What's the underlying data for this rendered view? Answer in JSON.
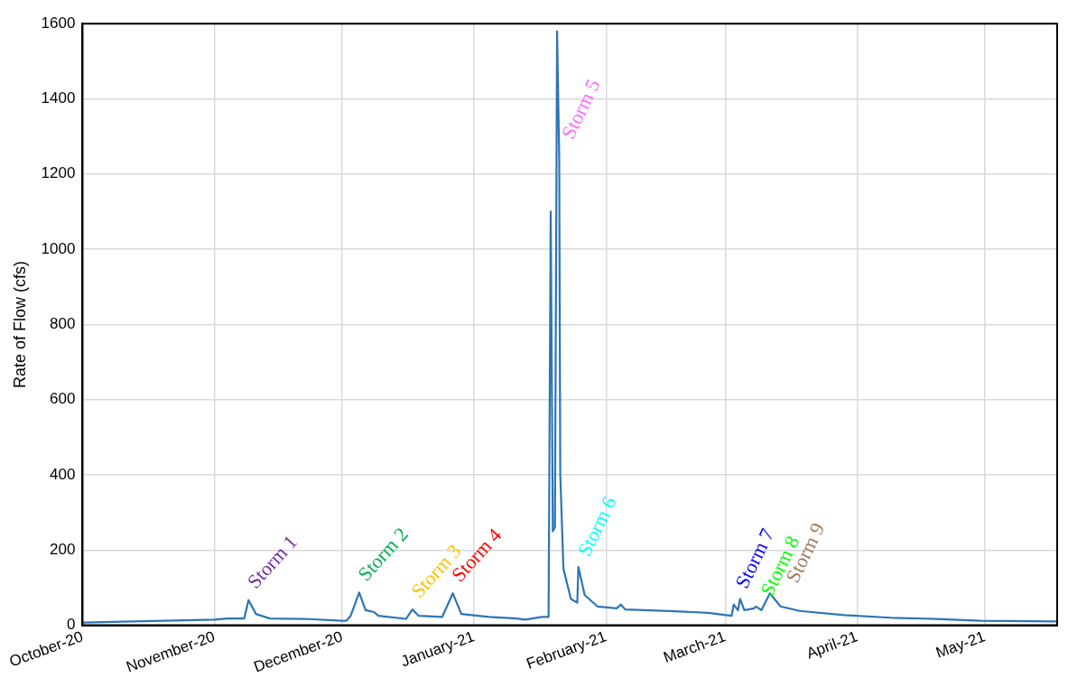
{
  "chart_data": {
    "type": "line",
    "ylabel": "Rate of Flow (cfs)",
    "x": [
      "2020-10-01",
      "2020-11-01",
      "2020-11-04",
      "2020-11-08",
      "2020-11-09",
      "2020-11-10T18:00",
      "2020-11-14",
      "2020-11-22",
      "2020-12-01",
      "2020-12-02",
      "2020-12-03",
      "2020-12-05",
      "2020-12-06T12:00",
      "2020-12-08T12:00",
      "2020-12-09T12:00",
      "2020-12-16",
      "2020-12-17T12:00",
      "2020-12-19",
      "2020-12-24T12:00",
      "2020-12-27",
      "2020-12-29",
      "2021-01-04T12:00",
      "2021-01-11",
      "2021-01-13",
      "2021-01-17",
      "2021-01-18T12:00",
      "2021-01-19T00:00",
      "2021-01-19T12:00",
      "2021-01-20T00:00",
      "2021-01-20T12:00",
      "2021-01-21T00:00",
      "2021-01-21T06:00",
      "2021-01-22T00:00",
      "2021-01-23T18:00",
      "2021-01-25T06:00",
      "2021-01-25T12:00",
      "2021-01-27",
      "2021-01-30",
      "2021-02-03T12:00",
      "2021-02-04T12:00",
      "2021-02-05T12:00",
      "2021-02-16",
      "2021-02-25",
      "2021-03-02T12:00",
      "2021-03-03",
      "2021-03-04",
      "2021-03-04T12:00",
      "2021-03-05T12:00",
      "2021-03-07T18:00",
      "2021-03-08T06:00",
      "2021-03-09T12:00",
      "2021-03-11T12:00",
      "2021-03-14",
      "2021-03-18T12:00",
      "2021-03-29",
      "2021-04-09",
      "2021-04-19T12:00",
      "2021-04-30",
      "2021-05-18"
    ],
    "series": [
      {
        "color": "#2e75b6",
        "values": [
          7,
          15,
          18,
          18,
          67,
          30,
          18,
          17,
          12,
          12,
          25,
          87,
          40,
          35,
          25,
          17,
          42,
          25,
          22,
          85,
          30,
          22,
          18,
          15,
          22,
          22,
          1100,
          250,
          260,
          1580,
          1250,
          400,
          150,
          70,
          60,
          155,
          80,
          50,
          45,
          55,
          42,
          38,
          33,
          25,
          55,
          40,
          70,
          40,
          45,
          50,
          40,
          85,
          50,
          38,
          27,
          20,
          17,
          12,
          10
        ]
      }
    ],
    "xlim": [
      "2020-10-01",
      "2021-05-18"
    ],
    "xticks": [
      {
        "value": "2020-10-01",
        "label": "October-20"
      },
      {
        "value": "2020-11-01",
        "label": "November-20"
      },
      {
        "value": "2020-12-01",
        "label": "December-20"
      },
      {
        "value": "2021-01-01",
        "label": "January-21"
      },
      {
        "value": "2021-02-01",
        "label": "February-21"
      },
      {
        "value": "2021-03-01",
        "label": "March-21"
      },
      {
        "value": "2021-04-01",
        "label": "April-21"
      },
      {
        "value": "2021-05-01",
        "label": "May-21"
      }
    ],
    "ylim": [
      0,
      1600
    ],
    "yticks": [
      0,
      200,
      400,
      600,
      800,
      1000,
      1200,
      1400,
      1600
    ],
    "grid": true,
    "marker": "none",
    "line_style": "solid",
    "annotations": [
      {
        "text": "Storm 1",
        "x": "2020-11-09",
        "y": 67
      },
      {
        "text": "Storm 2",
        "x": "2020-12-05",
        "y": 87
      },
      {
        "text": "Storm 3",
        "x": "2020-12-17T12:00",
        "y": 42
      },
      {
        "text": "Storm 4",
        "x": "2020-12-27",
        "y": 85
      },
      {
        "text": "Storm 5",
        "x": "2021-01-20T12:00",
        "y": 1580
      },
      {
        "text": "Storm 6",
        "x": "2021-01-25T12:00",
        "y": 155
      },
      {
        "text": "Storm 7",
        "x": "2021-03-04T12:00",
        "y": 70
      },
      {
        "text": "Storm 8",
        "x": "2021-03-08T06:00",
        "y": 50
      },
      {
        "text": "Storm 9",
        "x": "2021-03-11T12:00",
        "y": 85
      }
    ]
  }
}
